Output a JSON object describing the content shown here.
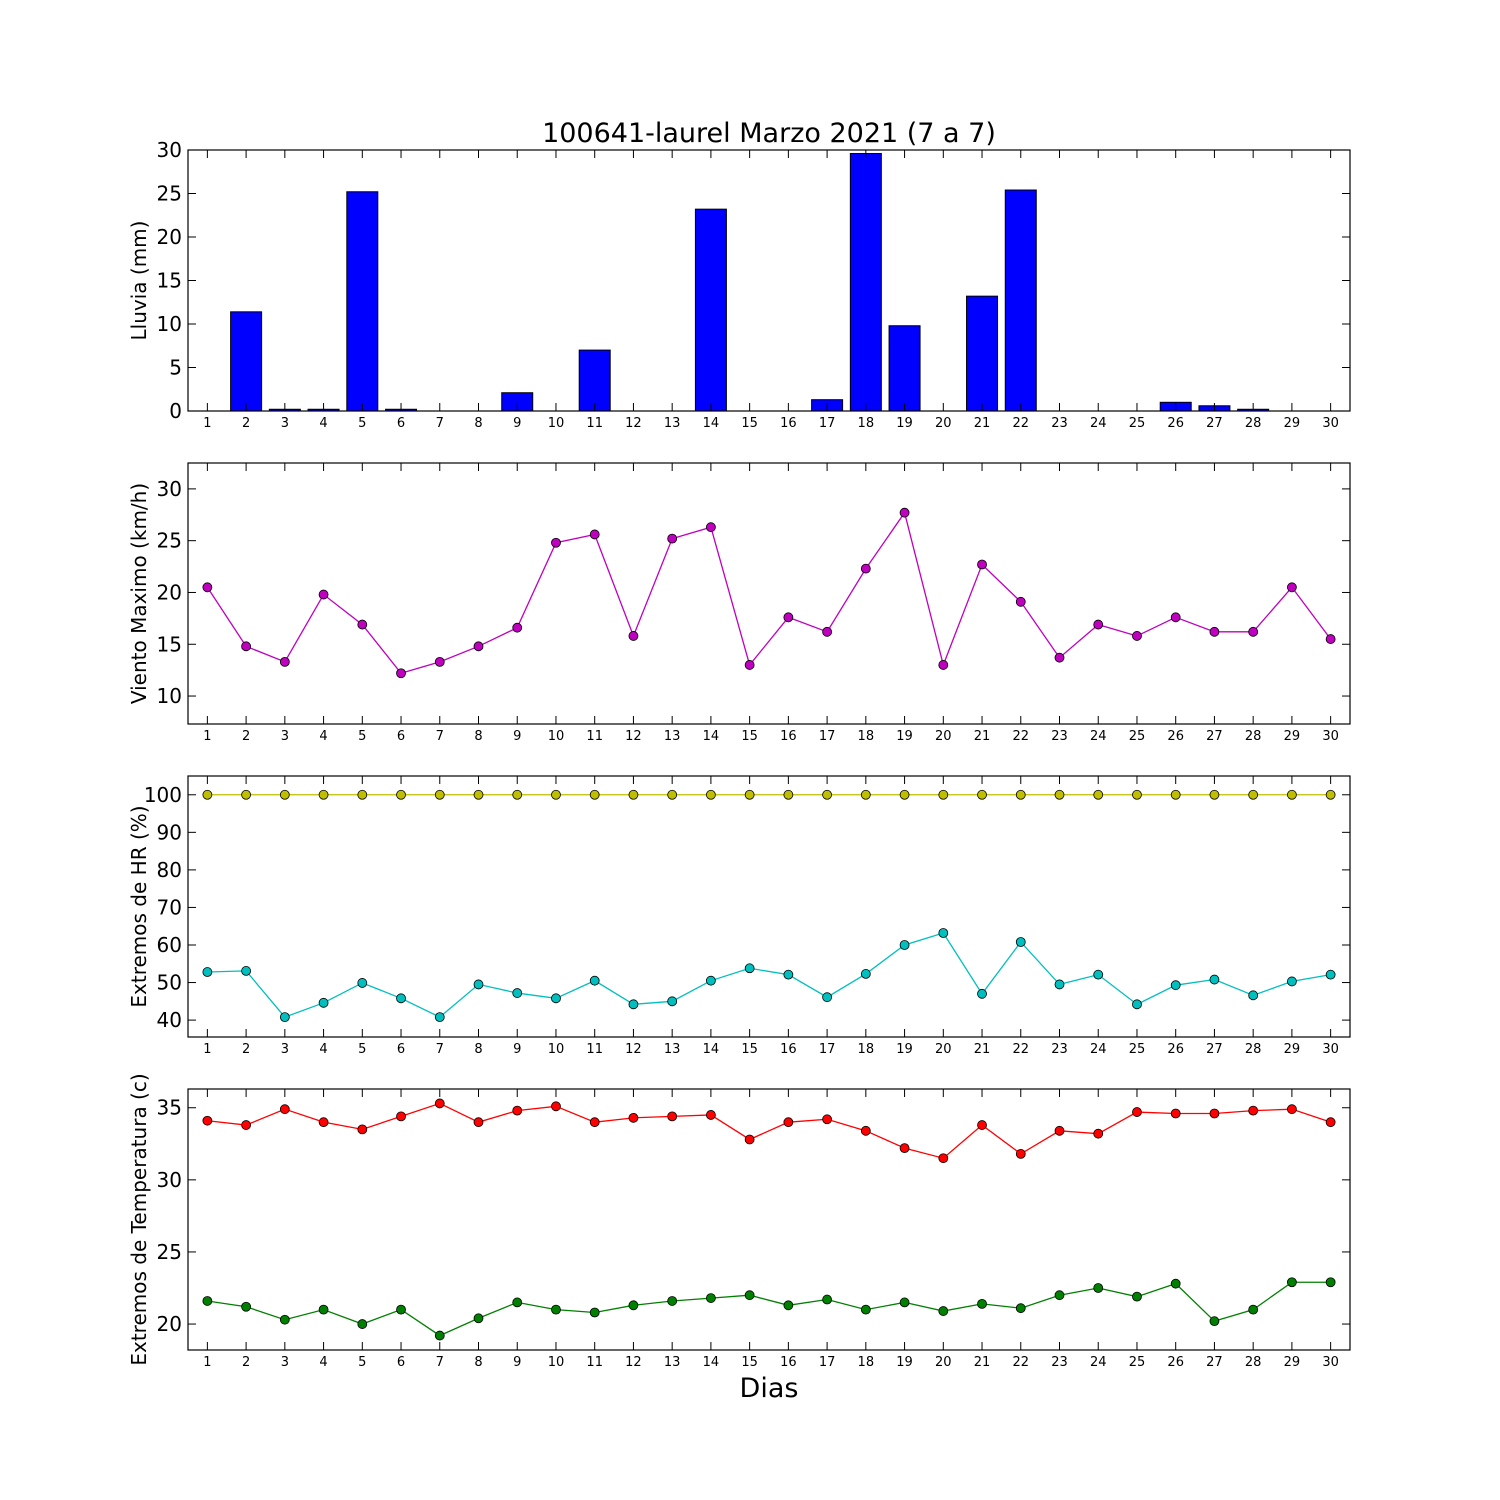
{
  "title": "100641-laurel Marzo 2021  (7 a 7)",
  "xlabel": "Dias",
  "colors": {
    "rain": "#0000ff",
    "wind": "#bf00bf",
    "hr_max": "#bfbf00",
    "hr_min": "#00bfbf",
    "temp_max": "#ff0000",
    "temp_min": "#008000"
  },
  "chart_data": [
    {
      "type": "bar",
      "ylabel": "Lluvia (mm)",
      "ylim": [
        0,
        30
      ],
      "yticks": [
        0,
        5,
        10,
        15,
        20,
        25,
        30
      ],
      "x": [
        1,
        2,
        3,
        4,
        5,
        6,
        7,
        8,
        9,
        10,
        11,
        12,
        13,
        14,
        15,
        16,
        17,
        18,
        19,
        20,
        21,
        22,
        23,
        24,
        25,
        26,
        27,
        28,
        29,
        30
      ],
      "series": [
        {
          "values": [
            0,
            11.4,
            0.2,
            0.2,
            25.2,
            0.2,
            0,
            0,
            2.1,
            0,
            7.0,
            0,
            0,
            23.2,
            0,
            0,
            1.3,
            29.6,
            9.8,
            0,
            13.2,
            25.4,
            0,
            0,
            0,
            1.0,
            0.6,
            0.2,
            0,
            0
          ],
          "color": "#0000ff"
        }
      ]
    },
    {
      "type": "line",
      "ylabel": "Viento Maximo (km/h)",
      "ylim": [
        7.3,
        32.5
      ],
      "yticks": [
        10,
        15,
        20,
        25,
        30
      ],
      "x": [
        1,
        2,
        3,
        4,
        5,
        6,
        7,
        8,
        9,
        10,
        11,
        12,
        13,
        14,
        15,
        16,
        17,
        18,
        19,
        20,
        21,
        22,
        23,
        24,
        25,
        26,
        27,
        28,
        29,
        30
      ],
      "series": [
        {
          "values": [
            20.5,
            14.8,
            13.3,
            19.8,
            16.9,
            12.2,
            13.3,
            14.8,
            16.6,
            24.8,
            25.6,
            15.8,
            25.2,
            26.3,
            13.0,
            17.6,
            16.2,
            22.3,
            27.7,
            13.0,
            22.7,
            19.1,
            13.7,
            16.9,
            15.8,
            17.6,
            16.2,
            16.2,
            20.5,
            15.5
          ],
          "color": "#bf00bf"
        }
      ]
    },
    {
      "type": "line",
      "ylabel": "Extremos de HR (%)",
      "ylim": [
        35.5,
        105
      ],
      "yticks": [
        40,
        50,
        60,
        70,
        80,
        90,
        100
      ],
      "x": [
        1,
        2,
        3,
        4,
        5,
        6,
        7,
        8,
        9,
        10,
        11,
        12,
        13,
        14,
        15,
        16,
        17,
        18,
        19,
        20,
        21,
        22,
        23,
        24,
        25,
        26,
        27,
        28,
        29,
        30
      ],
      "series": [
        {
          "values": [
            100,
            100,
            100,
            100,
            100,
            100,
            100,
            100,
            100,
            100,
            100,
            100,
            100,
            100,
            100,
            100,
            100,
            100,
            100,
            100,
            100,
            100,
            100,
            100,
            100,
            100,
            100,
            100,
            100,
            100
          ],
          "color": "#bfbf00"
        },
        {
          "values": [
            52.8,
            53.1,
            40.8,
            44.6,
            49.9,
            45.8,
            40.8,
            49.5,
            47.2,
            45.8,
            50.5,
            44.2,
            45.0,
            50.5,
            53.8,
            52.1,
            46.1,
            52.3,
            60.0,
            63.2,
            47.0,
            60.8,
            49.5,
            52.1,
            44.2,
            49.3,
            50.8,
            46.6,
            50.3,
            52.1
          ],
          "color": "#00bfbf"
        }
      ]
    },
    {
      "type": "line",
      "ylabel": "Extremos de Temperatura (c)",
      "ylim": [
        18.2,
        36.3
      ],
      "yticks": [
        20,
        25,
        30,
        35
      ],
      "x": [
        1,
        2,
        3,
        4,
        5,
        6,
        7,
        8,
        9,
        10,
        11,
        12,
        13,
        14,
        15,
        16,
        17,
        18,
        19,
        20,
        21,
        22,
        23,
        24,
        25,
        26,
        27,
        28,
        29,
        30
      ],
      "series": [
        {
          "values": [
            34.1,
            33.8,
            34.9,
            34.0,
            33.5,
            34.4,
            35.3,
            34.0,
            34.8,
            35.1,
            34.0,
            34.3,
            34.4,
            34.5,
            32.8,
            34.0,
            34.2,
            33.4,
            32.2,
            31.5,
            33.8,
            31.8,
            33.4,
            33.2,
            34.7,
            34.6,
            34.6,
            34.8,
            34.9,
            34.0
          ],
          "color": "#ff0000"
        },
        {
          "values": [
            21.6,
            21.2,
            20.3,
            21.0,
            20.0,
            21.0,
            19.2,
            20.4,
            21.5,
            21.0,
            20.8,
            21.3,
            21.6,
            21.8,
            22.0,
            21.3,
            21.7,
            21.0,
            21.5,
            20.9,
            21.4,
            21.1,
            22.0,
            22.5,
            21.9,
            22.8,
            20.2,
            21.0,
            22.9,
            22.9
          ],
          "color": "#008000"
        }
      ]
    }
  ]
}
